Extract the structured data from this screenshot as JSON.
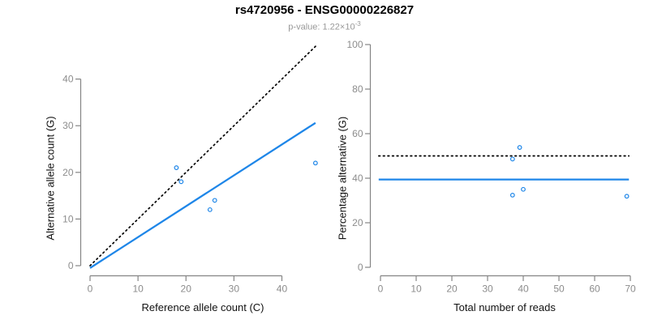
{
  "header": {
    "title": "rs4720956 - ENSG00000226827",
    "p_label": "p-value: 1.22×10",
    "p_exponent": "-3"
  },
  "colors": {
    "accent_blue": "#1E86E8",
    "identity_black": "#000000",
    "axis_gray": "#858585",
    "tick_label_gray": "#8C8C8C",
    "title_black": "#000000",
    "subtitle_gray": "#999999",
    "background": "#FFFFFF"
  },
  "chart_data": [
    {
      "type": "scatter",
      "panel": "left",
      "xlabel": "Reference allele count (C)",
      "ylabel": "Alternative allele count (G)",
      "xlim": [
        0,
        47.5
      ],
      "ylim": [
        -1,
        48
      ],
      "xticks": [
        0,
        10,
        20,
        30,
        40
      ],
      "yticks": [
        0,
        10,
        20,
        30,
        40
      ],
      "grid": false,
      "points": [
        [
          18,
          21
        ],
        [
          19,
          18
        ],
        [
          25,
          12
        ],
        [
          26,
          14
        ],
        [
          47,
          22
        ]
      ],
      "lines": [
        {
          "name": "identity-line",
          "style": "dotted",
          "color": "#000000",
          "from": [
            0,
            0
          ],
          "to": [
            47.2,
            47.2
          ]
        },
        {
          "name": "regression-line",
          "style": "solid",
          "color": "#1E86E8",
          "from": [
            0,
            -0.5
          ],
          "to": [
            47,
            30.6
          ]
        }
      ]
    },
    {
      "type": "scatter",
      "panel": "right",
      "xlabel": "Total number of reads",
      "ylabel": "Percentage alternative (G)",
      "xlim": [
        -1,
        71
      ],
      "ylim": [
        0,
        100
      ],
      "xticks": [
        0,
        10,
        20,
        30,
        40,
        50,
        60,
        70
      ],
      "yticks": [
        0,
        20,
        40,
        60,
        80,
        100
      ],
      "grid": false,
      "points": [
        [
          37,
          48.6
        ],
        [
          39,
          53.8
        ],
        [
          37,
          32.4
        ],
        [
          40,
          35
        ],
        [
          69,
          31.9
        ]
      ],
      "lines": [
        {
          "name": "expected-50pct-line",
          "style": "dotted",
          "color": "#000000",
          "from": [
            -0.5,
            50
          ],
          "to": [
            69.6,
            50
          ]
        },
        {
          "name": "observed-mean-line",
          "style": "solid",
          "color": "#1E86E8",
          "from": [
            -0.5,
            39.4
          ],
          "to": [
            69.6,
            39.4
          ]
        }
      ]
    }
  ]
}
